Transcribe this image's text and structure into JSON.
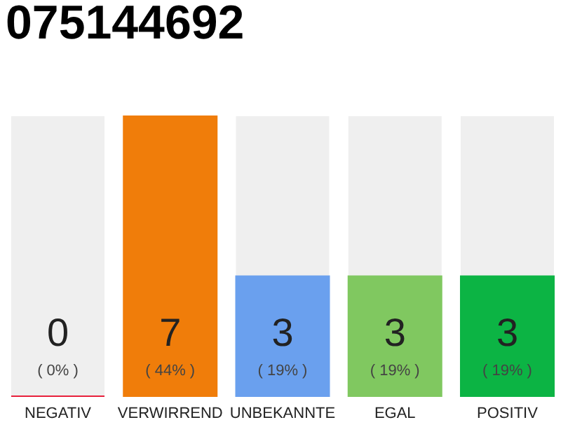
{
  "chart_data": {
    "type": "bar",
    "title": "075144692",
    "categories": [
      "NEGATIV",
      "VERWIRREND",
      "UNBEKANNTE",
      "EGAL",
      "POSITIV"
    ],
    "values": [
      0,
      7,
      3,
      3,
      3
    ],
    "colors": [
      "#e8203c",
      "#f07d0a",
      "#6aa0ee",
      "#80c860",
      "#0cb444"
    ],
    "ylim": [
      0,
      7
    ],
    "tick_labels": "x",
    "data_labels": true,
    "grid": false,
    "annotations": [
      {
        "text": "( 0% )",
        "x": "NEGATIV",
        "y": 0
      },
      {
        "text": "( 44% )",
        "x": "VERWIRREND",
        "y": 0
      },
      {
        "text": "( 19% )",
        "x": "UNBEKANNTE",
        "y": 0
      },
      {
        "text": "( 19% )",
        "x": "EGAL",
        "y": 0
      },
      {
        "text": "( 19% )",
        "x": "POSITIV",
        "y": 0
      }
    ]
  }
}
